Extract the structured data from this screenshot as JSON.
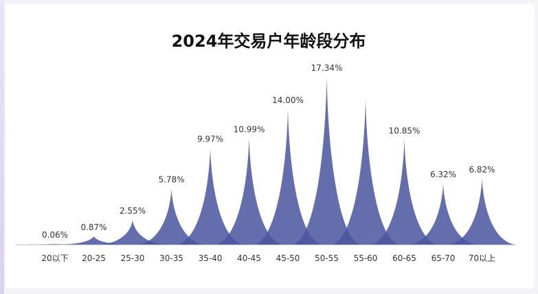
{
  "chart_data": {
    "type": "area",
    "title": "2024年交易户年龄段分布",
    "categories": [
      "20以下",
      "20-25",
      "25-30",
      "30-35",
      "35-40",
      "40-45",
      "45-50",
      "50-55",
      "55-60",
      "60-65",
      "65-70",
      "70以上"
    ],
    "values": [
      0.06,
      0.87,
      2.55,
      5.78,
      9.97,
      10.99,
      14.0,
      17.34,
      null,
      10.85,
      6.32,
      6.82
    ],
    "value_labels": [
      "0.06%",
      "0.87%",
      "2.55%",
      "5.78%",
      "9.97%",
      "10.99%",
      "14.00%",
      "17.34%",
      "",
      "10.85%",
      "6.32%",
      "6.82%"
    ],
    "ylim": [
      0,
      17.34
    ],
    "grid": false,
    "legend": "none",
    "xlabel": "",
    "ylabel": "",
    "color": "#4a56a0"
  }
}
